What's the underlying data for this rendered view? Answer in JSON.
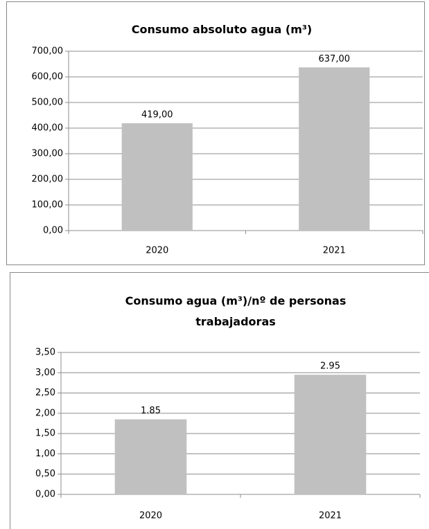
{
  "chart_data": [
    {
      "type": "bar",
      "title": "Consumo absoluto agua (m³)",
      "categories": [
        "2020",
        "2021"
      ],
      "values": [
        419,
        637
      ],
      "value_labels": [
        "419,00",
        "637,00"
      ],
      "color": "#c0c0c0",
      "ylim": [
        0,
        700
      ],
      "yticks": [
        {
          "value": 0,
          "label": "0,00"
        },
        {
          "value": 100,
          "label": "100,00"
        },
        {
          "value": 200,
          "label": "200,00"
        },
        {
          "value": 300,
          "label": "300,00"
        },
        {
          "value": 400,
          "label": "400,00"
        },
        {
          "value": 500,
          "label": "500,00"
        },
        {
          "value": 600,
          "label": "600,00"
        },
        {
          "value": 700,
          "label": "700,00"
        }
      ],
      "grid": true
    },
    {
      "type": "bar",
      "title": "Consumo agua (m³)/nº de personas trabajadoras",
      "categories": [
        "2020",
        "2021"
      ],
      "values": [
        1.85,
        2.95
      ],
      "color": "#c0c0c0",
      "ylim": [
        0,
        3.5
      ],
      "yticks": [
        {
          "value": 0,
          "label": "0,00"
        },
        {
          "value": 0.5,
          "label": "0,50"
        },
        {
          "value": 1,
          "label": "1,00"
        },
        {
          "value": 1.5,
          "label": "1,50"
        },
        {
          "value": 2,
          "label": "2,00"
        },
        {
          "value": 2.5,
          "label": "2,50"
        },
        {
          "value": 3,
          "label": "3,00"
        },
        {
          "value": 3.5,
          "label": "3,50"
        }
      ],
      "grid": true
    }
  ]
}
